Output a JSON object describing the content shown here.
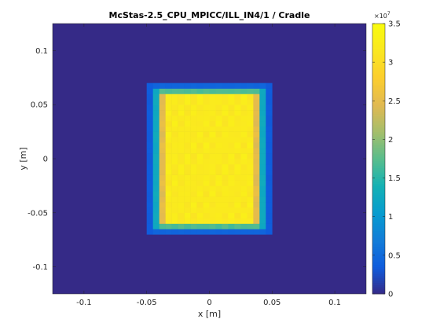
{
  "chart_data": {
    "type": "heatmap",
    "title": "McStas-2.5_CPU_MPICC/ILL_IN4/1 / Cradle",
    "xlabel": "x [m]",
    "ylabel": "y [m]",
    "xlim": [
      -0.125,
      0.125
    ],
    "ylim": [
      -0.125,
      0.125
    ],
    "x_ticks": [
      -0.1,
      -0.05,
      0,
      0.05,
      0.1
    ],
    "x_tick_labels": [
      "-0.1",
      "-0.05",
      "0",
      "0.05",
      "0.1"
    ],
    "y_ticks": [
      0.1,
      0.05,
      0,
      -0.05,
      -0.1
    ],
    "y_tick_labels": [
      "0.1",
      "0.05",
      "0",
      "-0.05",
      "-0.1"
    ],
    "colorbar": {
      "range": [
        0,
        35000000
      ],
      "ticks": [
        0,
        0.5,
        1,
        1.5,
        2,
        2.5,
        3,
        3.5
      ],
      "tick_labels": [
        "0",
        "0.5",
        "1",
        "1.5",
        "2",
        "2.5",
        "3",
        "3.5"
      ],
      "multiplier_base": "×10",
      "multiplier_exp": "7",
      "colormap": "parula"
    },
    "grid": {
      "bins_x": 50,
      "bins_y": 50,
      "region_x": [
        -0.05,
        0.05
      ],
      "region_y": [
        -0.07,
        0.07
      ],
      "plateau_x": [
        -0.035,
        0.035
      ],
      "plateau_y": [
        -0.058,
        0.058
      ],
      "peak_value": 32000000,
      "background_value": 0
    },
    "grid_lines": false
  }
}
